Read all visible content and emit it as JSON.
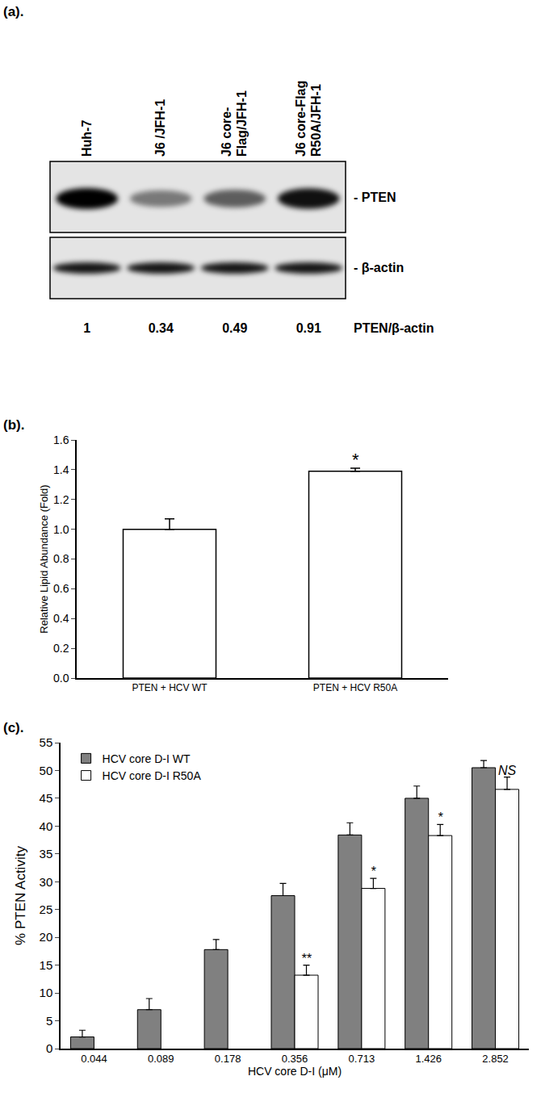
{
  "blot": {
    "panel": "(a).",
    "lanes": [
      [
        "Huh-7"
      ],
      [
        "J6 /JFH-1"
      ],
      [
        "J6 core-",
        "Flag/JFH-1"
      ],
      [
        "J6 core-Flag",
        "R50A/JFH-1"
      ]
    ],
    "bands": [
      "- PTEN",
      "- β-actin"
    ],
    "ratio_label": "PTEN/β-actin",
    "ratios": [
      1,
      0.34,
      0.49,
      0.91
    ]
  },
  "chart_data": [
    {
      "panel": "(b).",
      "type": "bar",
      "categories": [
        "PTEN + HCV WT",
        "PTEN + HCV R50A"
      ],
      "values": [
        1.0,
        1.39
      ],
      "errors": [
        0.07,
        0.02
      ],
      "color": "#ffffff",
      "y_label": "Relative Lipid Abundance (Fold)",
      "ylim": [
        0,
        1.6
      ],
      "yticks": [
        {
          "value": 0,
          "label": "0.0"
        },
        {
          "value": 0.2,
          "label": "0.2"
        },
        {
          "value": 0.4,
          "label": "0.4"
        },
        {
          "value": 0.6,
          "label": "0.6"
        },
        {
          "value": 0.8,
          "label": "0.8"
        },
        {
          "value": 1.0,
          "label": "1.0"
        },
        {
          "value": 1.2,
          "label": "1.2"
        },
        {
          "value": 1.4,
          "label": "1.4"
        },
        {
          "value": 1.6,
          "label": "1.6"
        }
      ],
      "grid": false,
      "annotations": [
        {
          "category": "PTEN + HCV R50A",
          "text": "*"
        }
      ]
    },
    {
      "panel": "(c).",
      "type": "bar",
      "categories": [
        "0.044",
        "0.089",
        "0.178",
        "0.356",
        "0.713",
        "1.426",
        "2.852"
      ],
      "series": [
        {
          "name": "HCV core D-I WT",
          "color": "#808080",
          "values": [
            2.1,
            7.0,
            17.8,
            27.5,
            38.4,
            45.0,
            50.5
          ],
          "errors": [
            1.2,
            2.0,
            1.8,
            2.2,
            2.2,
            2.2,
            1.3
          ]
        },
        {
          "name": "HCV core D-I R50A",
          "color": "#ffffff",
          "values": [
            null,
            null,
            null,
            13.2,
            28.8,
            38.3,
            46.6
          ],
          "errors": [
            null,
            null,
            null,
            1.8,
            1.8,
            2.0,
            2.2
          ]
        }
      ],
      "x_label": "HCV core D-I (μM)",
      "y_label": "% PTEN Activity",
      "ylim": [
        0,
        55
      ],
      "yticks": [
        0,
        5,
        10,
        15,
        20,
        25,
        30,
        35,
        40,
        45,
        50,
        55
      ],
      "legend": "top left",
      "grid": false,
      "annotations": [
        {
          "category": "0.356",
          "series": "HCV core D-I R50A",
          "text": "**"
        },
        {
          "category": "0.713",
          "series": "HCV core D-I R50A",
          "text": "*"
        },
        {
          "category": "1.426",
          "series": "HCV core D-I R50A",
          "text": "*"
        },
        {
          "category": "2.852",
          "series": "HCV core D-I R50A",
          "text": "NS"
        }
      ]
    }
  ]
}
